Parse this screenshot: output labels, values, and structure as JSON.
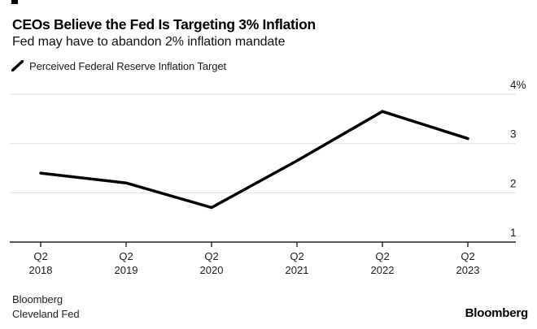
{
  "chart_data": {
    "type": "line",
    "title": "CEOs Believe the Fed Is Targeting 3% Inflation",
    "subtitle": "Fed may have to abandon 2% inflation mandate",
    "series": [
      {
        "name": "Perceived Federal Reserve Inflation Target",
        "color": "#000000",
        "values": [
          2.4,
          2.2,
          1.7,
          2.65,
          3.65,
          3.1
        ]
      }
    ],
    "categories": [
      "Q2 2018",
      "Q2 2019",
      "Q2 2020",
      "Q2 2021",
      "Q2 2022",
      "Q2 2023"
    ],
    "x_tick_lines": [
      [
        "Q2",
        "2018"
      ],
      [
        "Q2",
        "2019"
      ],
      [
        "Q2",
        "2020"
      ],
      [
        "Q2",
        "2021"
      ],
      [
        "Q2",
        "2022"
      ],
      [
        "Q2",
        "2023"
      ]
    ],
    "y_ticks": [
      {
        "label": "4%",
        "value": 4
      },
      {
        "label": "3",
        "value": 3
      },
      {
        "label": "2",
        "value": 2
      },
      {
        "label": "1",
        "value": 1
      }
    ],
    "ylim": [
      1,
      4
    ],
    "xlabel": "",
    "ylabel": "",
    "grid": "horizontal",
    "legend_position": "top-left"
  },
  "footer": {
    "source_line1": "Bloomberg",
    "source_line2": "Cleveland Fed",
    "logo": "Bloomberg"
  },
  "colors": {
    "background": "#ffffff",
    "line": "#000000",
    "grid": "#e3e3e3",
    "axis": "#222222",
    "text": "#1c1c1c"
  }
}
